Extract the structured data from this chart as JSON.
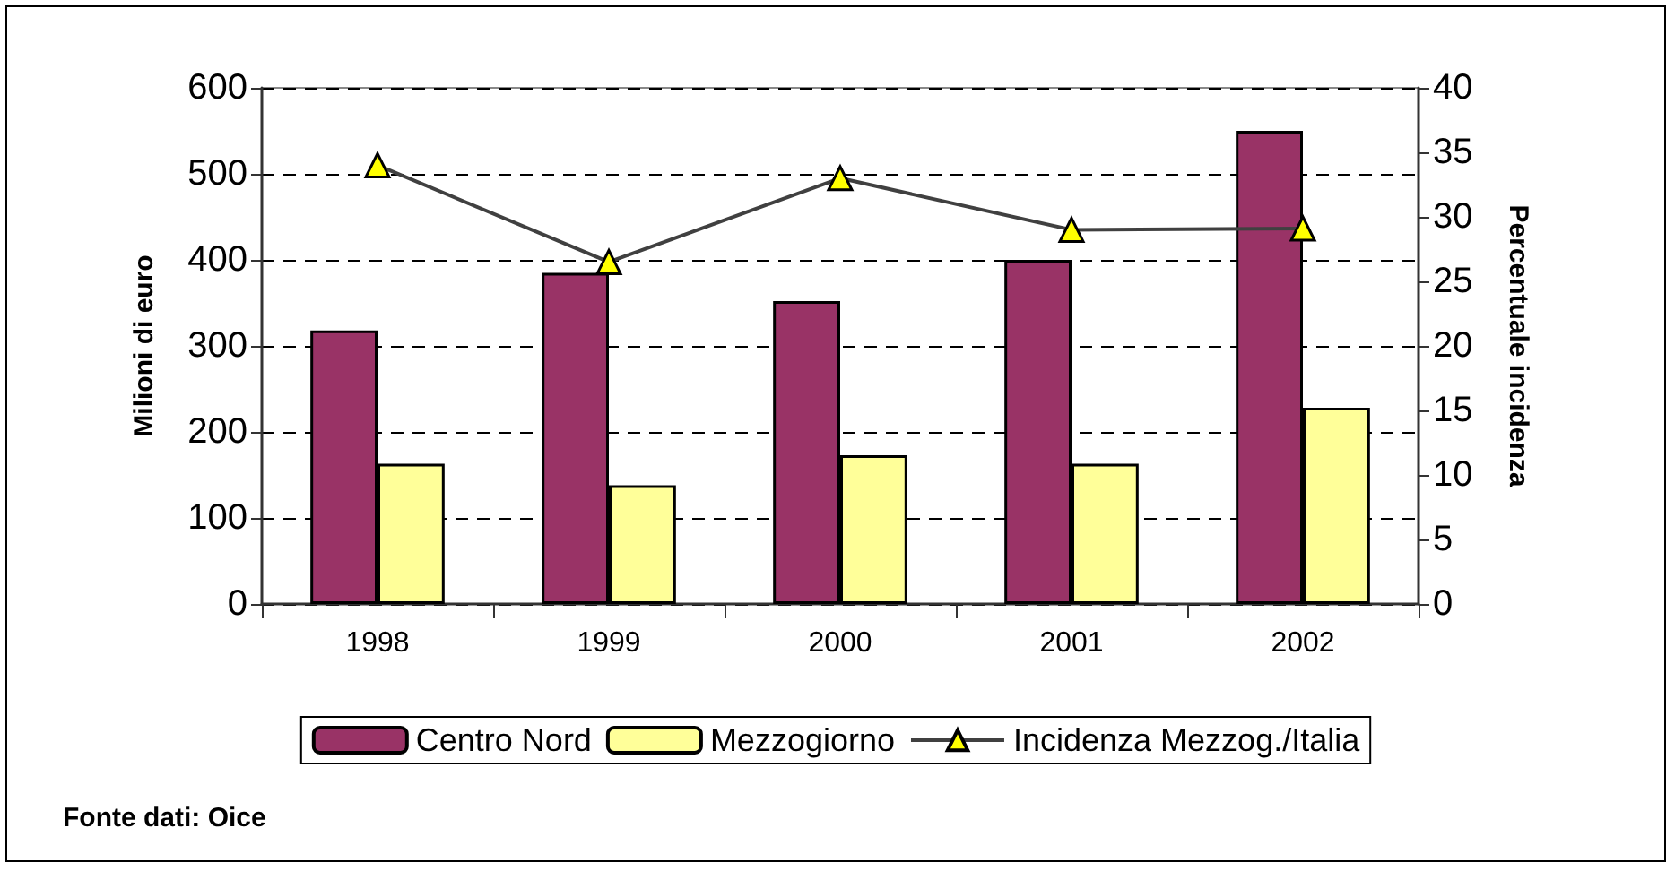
{
  "chart_data": {
    "type": "bar",
    "ylabel": "Milioni di euro",
    "y2label": "Percentuale incidenza",
    "categories": [
      "1998",
      "1999",
      "2000",
      "2001",
      "2002"
    ],
    "series": [
      {
        "name": "Centro Nord",
        "color": "#993366",
        "values": [
          318,
          385,
          352,
          400,
          550
        ]
      },
      {
        "name": "Mezzogiorno",
        "color": "#ffff99",
        "values": [
          163,
          138,
          173,
          163,
          228
        ]
      },
      {
        "name": "Incidenza Mezzog./Italia",
        "type": "line",
        "axis": "y2",
        "color": "#404040",
        "marker": "triangle",
        "values": [
          34,
          26.5,
          33,
          29,
          29.1
        ]
      }
    ],
    "ylim": [
      0,
      600
    ],
    "yticks": [
      0,
      100,
      200,
      300,
      400,
      500,
      600
    ],
    "y2lim": [
      0,
      40
    ],
    "y2ticks": [
      0,
      5,
      10,
      15,
      20,
      25,
      30,
      35,
      40
    ],
    "grid": "y",
    "legend": "bottom",
    "annotations": [
      "Fonte dati: Oice"
    ]
  }
}
